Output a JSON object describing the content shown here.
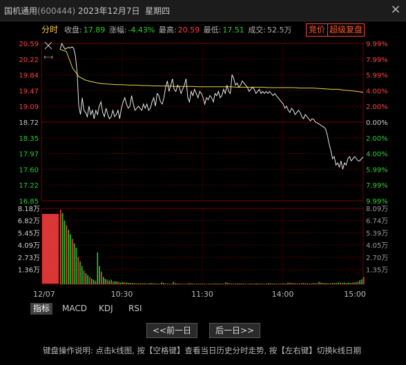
{
  "window": {
    "stock_name": "国机通用",
    "stock_code": "(600444)",
    "date": "2023年12月7日",
    "weekday": "星期四",
    "close_icon": "close-icon"
  },
  "info": {
    "mode": "分时",
    "close_label": "收盘:",
    "close_value": "17.89",
    "change_label": "涨幅:",
    "change_value": "-4.43%",
    "high_label": "最高:",
    "high_value": "20.59",
    "low_label": "最低:",
    "low_value": "17.51",
    "volume_label": "成交:",
    "volume_value": "52.5万",
    "auction_button": "竞价",
    "supercomp_button": "超级复盘"
  },
  "colors": {
    "up": "#ff4040",
    "down": "#28d02c",
    "price_line": "#e8e8e8",
    "avg_line": "#e8d84a",
    "grid": "#7a0000"
  },
  "price_axis": {
    "left": [
      "20.59",
      "20.22",
      "19.84",
      "19.47",
      "19.09",
      "18.72",
      "18.35",
      "17.97",
      "17.60",
      "17.22",
      "16.85"
    ],
    "right": [
      "9.99%",
      "7.99%",
      "5.99%",
      "4.00%",
      "2.00%",
      "0.00%",
      "2.00%",
      "4.00%",
      "5.99%",
      "7.99%",
      "9.99%"
    ]
  },
  "volume_axis": {
    "left": [
      "8.18万",
      "6.82万",
      "5.45万",
      "4.09万",
      "2.73万",
      "1.36万"
    ],
    "right": [
      "8.09万",
      "6.74万",
      "5.39万",
      "4.05万",
      "2.70万",
      "1.35万"
    ]
  },
  "time_axis": [
    "12/07",
    "10:30",
    "11:30",
    "14:00",
    "15:00"
  ],
  "chart_data": {
    "type": "line",
    "prev_close": 18.72,
    "ylim": [
      16.85,
      20.59
    ],
    "series": [
      {
        "values": [
          20.45,
          20.59,
          20.52,
          20.45,
          20.48,
          20.5,
          20.48,
          20.51,
          20.47,
          20.3,
          19.9,
          19.1,
          18.9,
          19.3,
          19.0,
          18.95,
          18.85,
          19.1,
          18.9,
          19.0,
          18.8,
          19.0,
          18.9,
          19.1,
          19.2,
          18.95,
          18.85,
          19.05,
          18.9,
          18.8,
          18.85,
          19.0,
          18.85,
          18.9,
          19.0,
          18.8,
          19.05,
          19.2,
          19.3,
          19.15,
          19.05,
          19.1,
          19.35,
          19.15,
          19.0,
          19.05,
          19.1,
          19.05,
          19.0,
          19.15,
          19.05,
          19.15,
          19.0,
          19.05,
          19.2,
          19.3,
          19.1,
          19.4,
          19.35,
          19.2,
          19.15,
          19.3,
          19.55,
          19.7,
          19.45,
          19.6,
          19.75,
          19.5,
          19.45,
          19.6,
          19.55,
          19.4,
          19.5,
          19.6,
          19.75,
          19.3,
          19.2,
          19.45,
          19.35,
          19.5,
          19.4,
          19.3,
          19.45,
          19.4,
          19.3,
          19.15,
          19.3,
          19.25,
          19.35,
          19.3,
          19.2,
          19.4,
          19.35,
          19.45,
          19.3,
          19.35,
          19.5,
          19.4,
          19.6,
          19.45,
          19.4,
          19.85,
          19.75,
          19.6,
          19.65,
          19.55,
          19.6,
          19.7,
          19.65,
          19.6,
          19.55,
          19.45,
          19.5,
          19.55,
          19.5,
          19.4,
          19.45,
          19.5,
          19.4,
          19.45,
          19.4,
          19.45,
          19.4,
          19.45,
          19.4,
          19.35,
          19.4,
          19.35,
          19.3,
          19.25,
          19.2,
          19.15,
          19.05,
          19.1,
          19.0,
          18.95,
          19.05,
          19.0,
          18.9,
          18.95,
          19.0,
          18.95,
          18.85,
          18.8,
          18.9,
          18.85,
          18.8,
          18.75,
          18.8,
          18.78,
          18.72,
          18.7,
          18.68,
          18.65,
          18.62,
          18.6,
          18.55,
          18.4,
          18.2,
          18.05,
          17.85,
          17.9,
          17.7,
          17.75,
          17.65,
          17.8,
          17.6,
          17.75,
          17.7,
          17.85,
          17.9,
          17.8,
          17.85,
          17.9,
          17.85,
          17.8,
          17.8,
          17.85,
          17.89
        ]
      },
      {
        "values": [
          20.45,
          20.4,
          20.0,
          19.8,
          19.72,
          19.68,
          19.65,
          19.63,
          19.62,
          19.61,
          19.61,
          19.6,
          19.6,
          19.59,
          19.59,
          19.58,
          19.58,
          19.58,
          19.57,
          19.57,
          19.57,
          19.57,
          19.56,
          19.56,
          19.56,
          19.56,
          19.56,
          19.56,
          19.55,
          19.55,
          19.55,
          19.55,
          19.55,
          19.54,
          19.54,
          19.54,
          19.54,
          19.54,
          19.53,
          19.53,
          19.53,
          19.52,
          19.51,
          19.5,
          19.5,
          19.48,
          19.47,
          19.45,
          19.43
        ]
      }
    ],
    "volume": {
      "ylim": [
        0,
        81800
      ],
      "values": [
        81800,
        78000,
        70000,
        65000,
        60000,
        55000,
        50000,
        45000,
        40000,
        30000,
        25000,
        20000,
        15000,
        12000,
        10000,
        8000,
        6000,
        5000,
        4000,
        35000,
        20000,
        14000,
        8000,
        6000,
        5000,
        4000,
        5000,
        3000,
        3500,
        3000,
        2500,
        2000,
        2500,
        2000,
        1800,
        1500,
        1500,
        1300,
        1200,
        1100,
        1000,
        900,
        1200,
        1000,
        900,
        800,
        1400,
        1200,
        1000,
        800,
        700,
        700,
        2000,
        1500,
        900,
        800,
        700,
        600,
        2500,
        1200,
        900,
        700,
        700,
        600,
        600,
        500,
        1500,
        1000,
        800,
        700,
        600,
        700,
        800,
        600,
        500,
        500,
        600,
        700,
        600,
        1000,
        900,
        800,
        700,
        600,
        700,
        2200,
        1500,
        1000,
        900,
        700,
        800,
        900,
        800,
        1000,
        900,
        700,
        600,
        700,
        800,
        700,
        900,
        1000,
        800,
        700,
        700,
        600,
        800,
        1200,
        1100,
        900,
        800,
        700,
        700,
        800,
        900,
        1000,
        800,
        2000,
        1600,
        1200,
        1400,
        1000,
        900,
        1000,
        1100,
        1400,
        1200,
        1000,
        800,
        900,
        1300,
        1000,
        1100,
        2600,
        1900,
        1500,
        1300,
        1200,
        1000,
        1100,
        1500,
        1400,
        1300,
        2000,
        1600,
        1400,
        1800,
        1500,
        1700,
        1500,
        1600,
        2000,
        2200,
        3000,
        4500,
        5500,
        8000
      ]
    }
  },
  "tabs": [
    "指标",
    "MACD",
    "KDJ",
    "RSI"
  ],
  "nav": {
    "prev": "<<前一日",
    "next": "后一日>>"
  },
  "help_text": "键盘操作说明: 点击k线图, 按【空格键】查看当日历史分时走势, 按【左右键】切换k线日期"
}
